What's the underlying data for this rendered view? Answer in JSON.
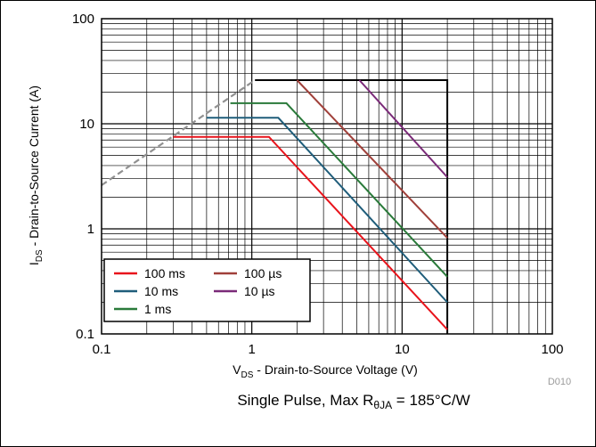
{
  "chart_data": {
    "type": "line",
    "x_scale": "log",
    "y_scale": "log",
    "xlim": [
      0.1,
      100
    ],
    "ylim": [
      0.1,
      100
    ],
    "grid": true,
    "x_ticks": [
      "0.1",
      "1",
      "10",
      "100"
    ],
    "y_ticks": [
      "0.1",
      "1",
      "10",
      "100"
    ],
    "xlabel": {
      "main": "V",
      "sub": "DS",
      "rest": " - Drain-to-Source Voltage (V)"
    },
    "ylabel": {
      "main": "I",
      "sub": "DS",
      "rest": " - Drain-to-Source Current (A)"
    },
    "caption": {
      "pre": "Single Pulse, Max R",
      "sub": "θJA",
      "post": " = 185°C/W"
    },
    "figure_code": "D010",
    "legend_position": "bottom-left",
    "colors": {
      "rdson_limit": "#909090",
      "boundary": "#000000",
      "100 ms": "#e8141c",
      "10 ms": "#1f5d7a",
      "1 ms": "#2a7a3a",
      "100 µs": "#a0403a",
      "10 µs": "#7a2a78"
    },
    "series": [
      {
        "name": "100 ms",
        "points": [
          [
            0.3,
            7.5
          ],
          [
            1.3,
            7.5
          ],
          [
            20,
            0.11
          ]
        ]
      },
      {
        "name": "10 ms",
        "points": [
          [
            0.5,
            11.4
          ],
          [
            1.5,
            11.4
          ],
          [
            20,
            0.2
          ]
        ]
      },
      {
        "name": "1 ms",
        "points": [
          [
            0.72,
            15.7
          ],
          [
            1.7,
            15.7
          ],
          [
            20,
            0.35
          ]
        ]
      },
      {
        "name": "100 µs",
        "points": [
          [
            2.0,
            26
          ],
          [
            20,
            0.82
          ]
        ]
      },
      {
        "name": "10 µs",
        "points": [
          [
            5.2,
            26
          ],
          [
            20,
            3.1
          ]
        ]
      }
    ],
    "rdson_limit": {
      "points": [
        [
          0.1,
          2.6
        ],
        [
          1.05,
          26
        ]
      ]
    },
    "boundary": {
      "points": [
        [
          1.05,
          26
        ],
        [
          20,
          26
        ],
        [
          20,
          0.1
        ]
      ]
    },
    "legend": [
      {
        "name": "100 ms",
        "row": 0,
        "col": 0
      },
      {
        "name": "100 µs",
        "row": 0,
        "col": 1
      },
      {
        "name": "10 ms",
        "row": 1,
        "col": 0
      },
      {
        "name": "10 µs",
        "row": 1,
        "col": 1
      },
      {
        "name": "1 ms",
        "row": 2,
        "col": 0
      }
    ]
  }
}
